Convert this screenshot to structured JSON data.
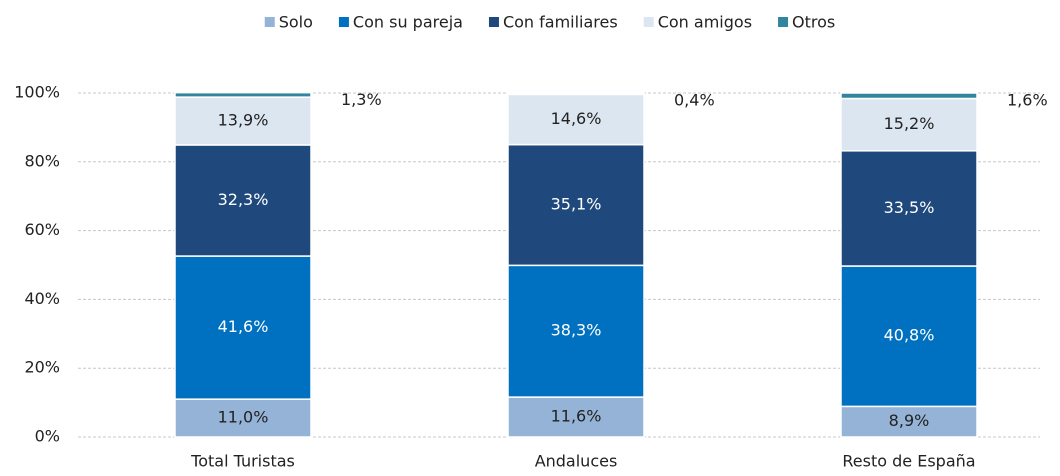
{
  "chart_data": {
    "type": "stacked_bar",
    "categories": [
      "Total Turistas",
      "Andaluces",
      "Resto de España"
    ],
    "series": [
      {
        "name": "Solo",
        "color": "#95b3d7",
        "values": [
          11.0,
          11.6,
          8.9
        ],
        "value_labels": [
          "11,0%",
          "11,6%",
          "8,9%"
        ]
      },
      {
        "name": "Con su pareja",
        "color": "#0070c0",
        "values": [
          41.6,
          38.3,
          40.8
        ],
        "value_labels": [
          "41,6%",
          "38,3%",
          "40,8%"
        ]
      },
      {
        "name": "Con familiares",
        "color": "#1f497d",
        "values": [
          32.3,
          35.1,
          33.5
        ],
        "value_labels": [
          "32,3%",
          "35,1%",
          "33,5%"
        ]
      },
      {
        "name": "Con amigos",
        "color": "#dce6f1",
        "values": [
          13.9,
          14.6,
          15.2
        ],
        "value_labels": [
          "13,9%",
          "14,6%",
          "15,2%"
        ]
      },
      {
        "name": "Otros",
        "color": "#31859c",
        "values": [
          1.3,
          0.4,
          1.6
        ],
        "value_labels": [
          "1,3%",
          "0,4%",
          "1,6%"
        ]
      }
    ],
    "ylim": [
      0,
      100
    ],
    "yticks": [
      {
        "value": 0,
        "label": "0%"
      },
      {
        "value": 20,
        "label": "20%"
      },
      {
        "value": 40,
        "label": "40%"
      },
      {
        "value": 60,
        "label": "60%"
      },
      {
        "value": 80,
        "label": "80%"
      },
      {
        "value": 100,
        "label": "100%"
      }
    ],
    "grid": true,
    "legend": "top"
  }
}
